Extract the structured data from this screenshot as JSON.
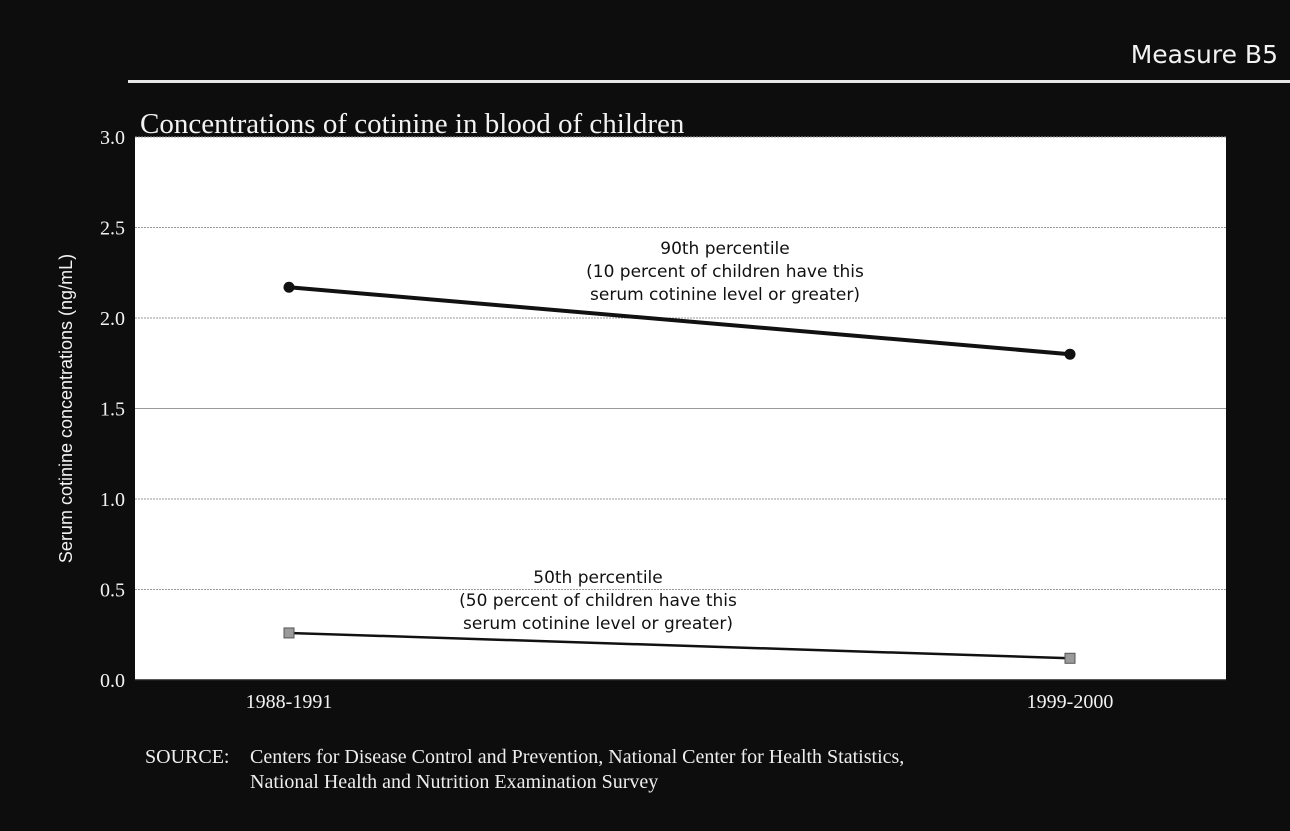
{
  "header": {
    "measure": "Measure B5",
    "title": "Concentrations of cotinine in blood of children"
  },
  "chart_data": {
    "type": "line",
    "title": "Concentrations of cotinine in blood of children",
    "xlabel": "",
    "ylabel": "Serum cotinine concentrations (ng/mL)",
    "categories": [
      "1988-1991",
      "1999-2000"
    ],
    "ylim": [
      0,
      3.0
    ],
    "yticks": [
      "0.0",
      "0.5",
      "1.0",
      "1.5",
      "2.0",
      "2.5",
      "3.0"
    ],
    "grid": true,
    "series": [
      {
        "name": "90th percentile",
        "values": [
          2.17,
          1.8
        ],
        "marker": "circle",
        "annotation": [
          "90th percentile",
          "(10 percent of children have this",
          "serum cotinine level or greater)"
        ]
      },
      {
        "name": "50th percentile",
        "values": [
          0.26,
          0.12
        ],
        "marker": "square",
        "annotation": [
          "50th percentile",
          "(50 percent of children have this",
          "serum cotinine level or greater)"
        ]
      }
    ]
  },
  "source": {
    "label": "SOURCE:",
    "line1": "Centers for Disease Control and Prevention, National Center for Health Statistics,",
    "line2": "National Health and Nutrition Examination Survey"
  },
  "colors": {
    "background": "#0d0d0d",
    "plot_area": "#ffffff",
    "text": "#f2f2f2",
    "line": "#111111",
    "marker_50th": "#9a9a9a"
  }
}
